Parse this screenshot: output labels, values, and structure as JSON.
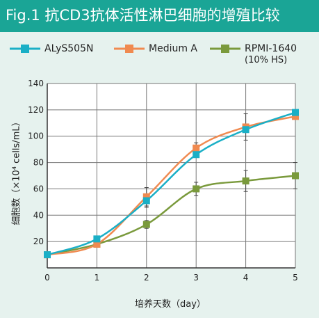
{
  "title": "Fig.1 抗CD3抗体活性淋巴细胞的增殖比较",
  "chart_data": {
    "type": "line",
    "x": [
      0,
      1,
      2,
      3,
      4,
      5
    ],
    "series": [
      {
        "name": "ALyS505N",
        "sub": "",
        "color": "#1aafc6",
        "marker": "square",
        "values": [
          10,
          22,
          51,
          86,
          105,
          118
        ],
        "err": [
          0,
          0,
          5,
          0,
          0,
          0
        ]
      },
      {
        "name": "Medium A",
        "sub": "",
        "color": "#f08a50",
        "marker": "square",
        "values": [
          10,
          18,
          54,
          91,
          107,
          115
        ],
        "err": [
          0,
          0,
          7,
          4,
          10,
          2
        ]
      },
      {
        "name": "RPMI-1640",
        "sub": "(10% HS)",
        "color": "#7a9a3c",
        "marker": "square",
        "values": [
          10,
          18,
          33,
          60,
          66,
          70
        ],
        "err": [
          0,
          0,
          3,
          5,
          8,
          10
        ]
      }
    ],
    "xlabel": "培养天数（day）",
    "ylabel": "细胞数（×10⁴ cells/mL）",
    "xlim": [
      0,
      5
    ],
    "ylim": [
      0,
      140
    ],
    "xticks": [
      0,
      1,
      2,
      3,
      4,
      5
    ],
    "yticks": [
      20,
      40,
      60,
      80,
      100,
      120,
      140
    ],
    "grid": true,
    "legend": "top"
  }
}
